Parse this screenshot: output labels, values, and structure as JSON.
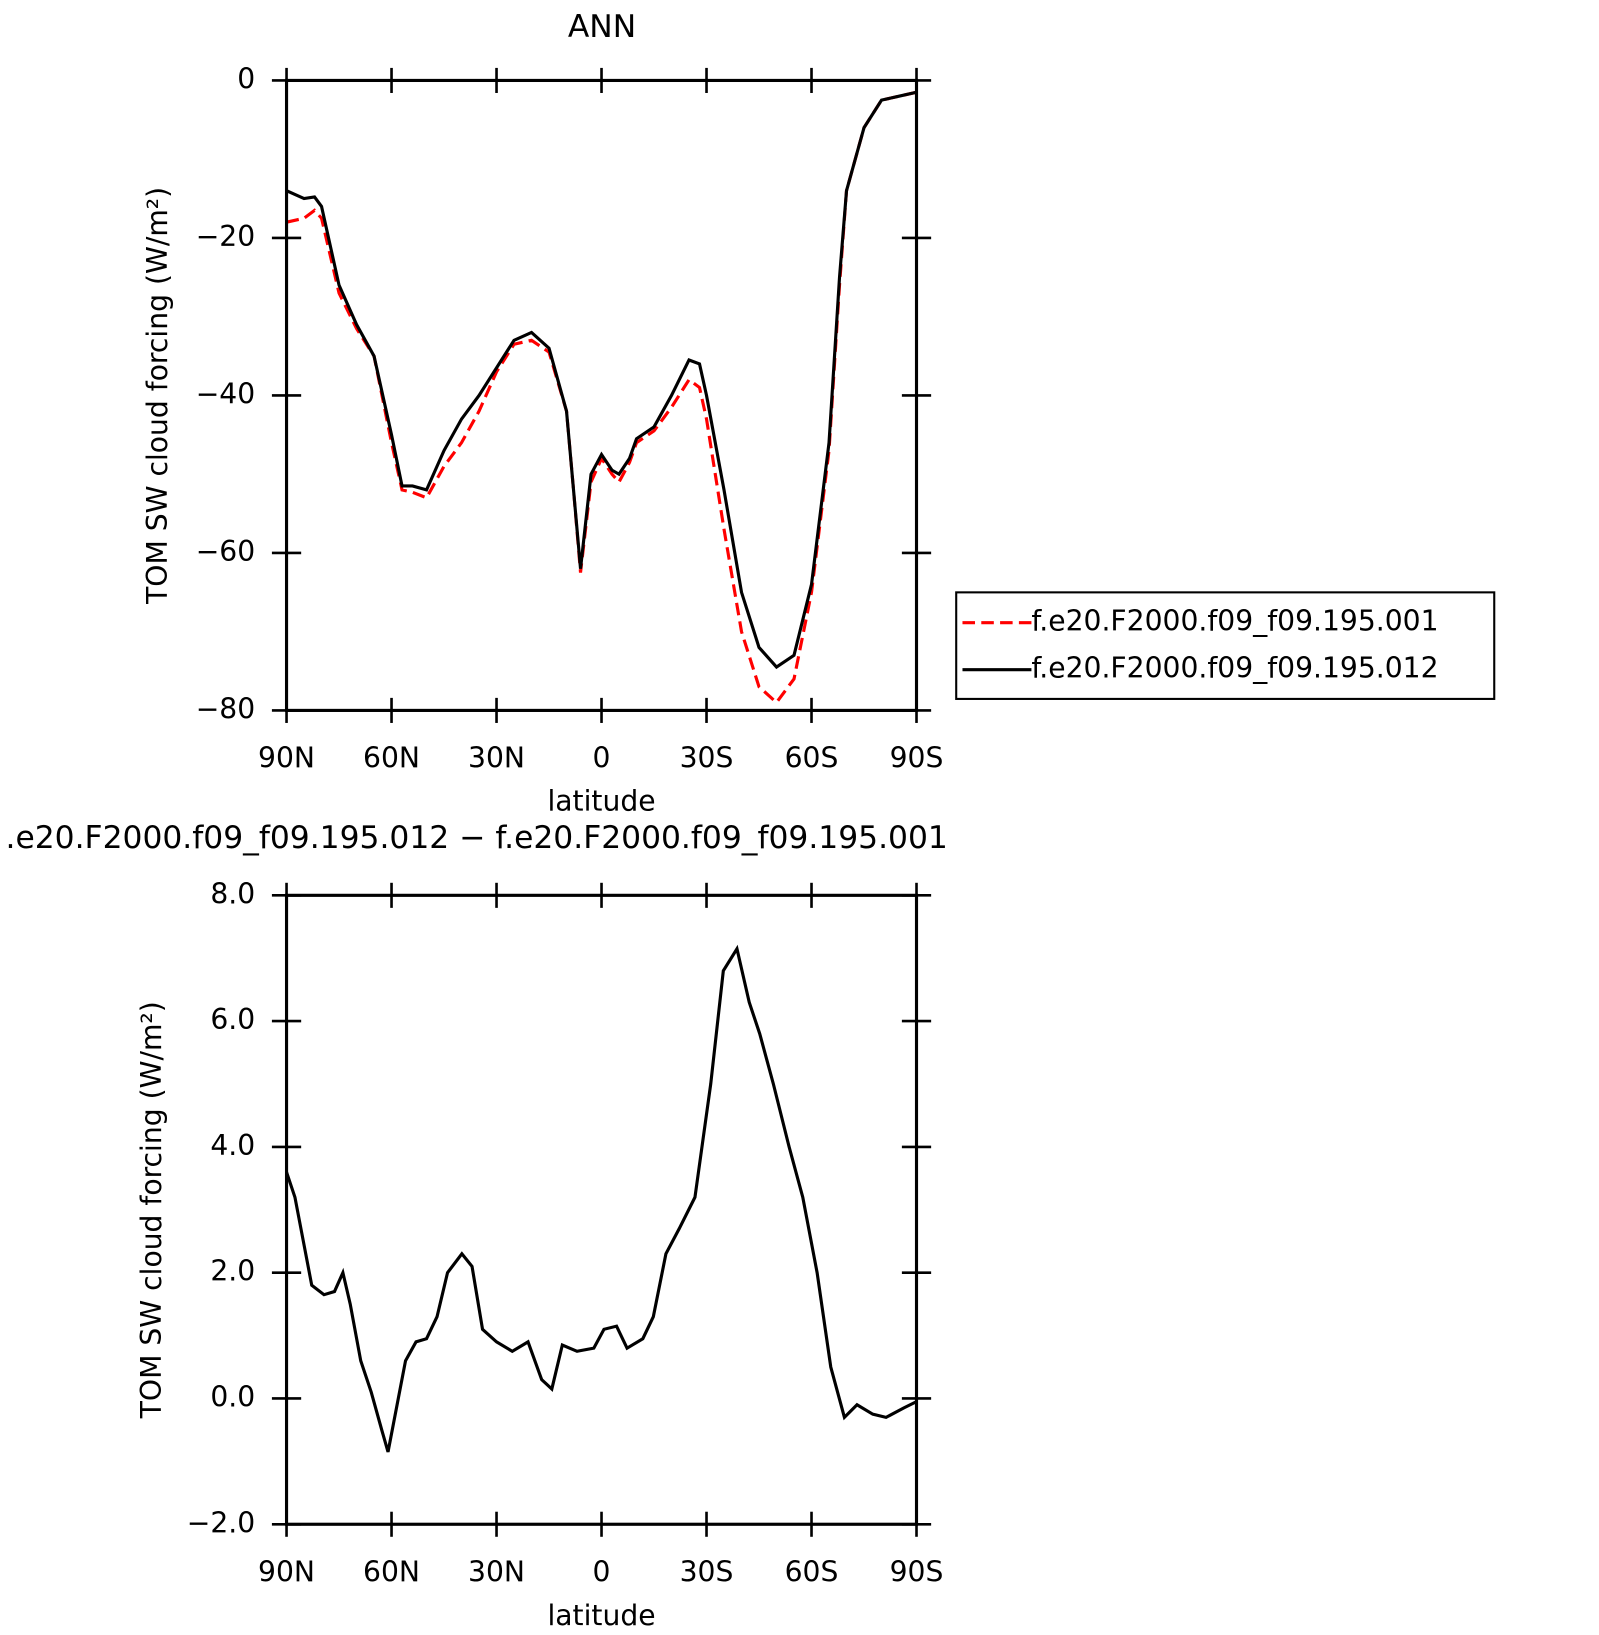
{
  "chart_data": [
    {
      "type": "line",
      "title": "ANN",
      "xlabel": "latitude",
      "ylabel": "TOM SW cloud forcing (W/m²)",
      "x": [
        90,
        85,
        82,
        80,
        75,
        70,
        65,
        60,
        57,
        54,
        50,
        45,
        40,
        35,
        30,
        25,
        20,
        15,
        10,
        8,
        6,
        3,
        0,
        -3,
        -5,
        -8,
        -10,
        -15,
        -20,
        -25,
        -28,
        -30,
        -35,
        -40,
        -45,
        -50,
        -55,
        -60,
        -65,
        -68,
        -70,
        -75,
        -80,
        -85,
        -90
      ],
      "series": [
        {
          "name": "f.e20.F2000.f09_f09.195.001",
          "color": "#ff0000",
          "linestyle": "dashed",
          "values": [
            -18,
            -17.5,
            -16.5,
            -17.5,
            -27,
            -31.5,
            -35,
            -46,
            -52,
            -52.3,
            -53,
            -49,
            -46,
            -42,
            -37,
            -33.5,
            -33,
            -34.5,
            -42,
            -52,
            -62.5,
            -51,
            -48,
            -50,
            -51,
            -48.5,
            -46,
            -44.5,
            -41.5,
            -38,
            -39,
            -43,
            -57,
            -70,
            -77,
            -79,
            -76,
            -65,
            -47,
            -26,
            -14,
            -6,
            -2.5,
            -2,
            -1.5
          ]
        },
        {
          "name": "f.e20.F2000.f09_f09.195.012",
          "color": "#000000",
          "linestyle": "solid",
          "values": [
            -14,
            -15,
            -14.8,
            -16,
            -26,
            -31,
            -35,
            -45,
            -51.5,
            -51.5,
            -52,
            -47,
            -43,
            -40,
            -36.5,
            -33,
            -32,
            -34,
            -42,
            -52,
            -62,
            -50,
            -47.5,
            -49.5,
            -50,
            -48,
            -45.5,
            -44,
            -40,
            -35.5,
            -36,
            -40,
            -52,
            -65,
            -72,
            -74.5,
            -73,
            -64,
            -46,
            -25,
            -14,
            -6,
            -2.5,
            -2,
            -1.5
          ]
        }
      ],
      "xlim": [
        90,
        -90
      ],
      "xticks": [
        {
          "value": 90,
          "label": "90N"
        },
        {
          "value": 60,
          "label": "60N"
        },
        {
          "value": 30,
          "label": "30N"
        },
        0,
        {
          "value": -30,
          "label": "30S"
        },
        {
          "value": -60,
          "label": "60S"
        },
        {
          "value": -90,
          "label": "90S"
        }
      ],
      "ylim": [
        -80,
        0
      ],
      "yticks": [
        {
          "value": -80,
          "label": "−80"
        },
        {
          "value": -60,
          "label": "−60"
        },
        {
          "value": -40,
          "label": "−40"
        },
        {
          "value": -20,
          "label": "−20"
        },
        0
      ],
      "legend": "right"
    },
    {
      "type": "line",
      "title": ".e20.F2000.f09_f09.195.012 − f.e20.F2000.f09_f09.195.001",
      "xlabel": "latitude",
      "ylabel": "TOM SW cloud forcing (W/m²)",
      "x": [
        90,
        87.6,
        85.2,
        82.8,
        79.3,
        76.3,
        73.9,
        71.8,
        68.8,
        65.8,
        62.8,
        61,
        56,
        53,
        50,
        47,
        44,
        39.9,
        37,
        34,
        30,
        25.5,
        21,
        17.1,
        14.2,
        11.2,
        7,
        2.2,
        -0.7,
        -4.3,
        -7.3,
        -11.8,
        -14.8,
        -18.4,
        -22.2,
        -26.7,
        -31.2,
        -34.8,
        -38.7,
        -42.2,
        -45.2,
        -49.1,
        -53.6,
        -57.5,
        -61.6,
        -65.5,
        -69.4,
        -73,
        -77.5,
        -81.3,
        -86.4,
        -90
      ],
      "series": [
        {
          "color": "#000000",
          "linestyle": "solid",
          "values": [
            3.6,
            3.2,
            2.5,
            1.8,
            1.65,
            1.7,
            2.0,
            1.5,
            0.6,
            0.1,
            -0.5,
            -0.85,
            0.6,
            0.9,
            0.95,
            1.3,
            2.0,
            2.3,
            2.1,
            1.1,
            0.9,
            0.75,
            0.9,
            0.3,
            0.15,
            0.85,
            0.75,
            0.8,
            1.1,
            1.15,
            0.8,
            0.95,
            1.3,
            2.3,
            2.7,
            3.2,
            5.0,
            6.8,
            7.15,
            6.3,
            5.8,
            5.0,
            4.0,
            3.2,
            2.0,
            0.5,
            -0.3,
            -0.1,
            -0.25,
            -0.3,
            -0.15,
            -0.05
          ]
        }
      ],
      "xlim": [
        90,
        -90
      ],
      "xticks": [
        {
          "value": 90,
          "label": "90N"
        },
        {
          "value": 60,
          "label": "60N"
        },
        {
          "value": 30,
          "label": "30N"
        },
        0,
        {
          "value": -30,
          "label": "30S"
        },
        {
          "value": -60,
          "label": "60S"
        },
        {
          "value": -90,
          "label": "90S"
        }
      ],
      "ylim": [
        -2,
        8
      ],
      "yticks": [
        {
          "value": -2,
          "label": "−2.0"
        },
        {
          "value": 0,
          "label": "0.0"
        },
        {
          "value": 2,
          "label": "2.0"
        },
        {
          "value": 4,
          "label": "4.0"
        },
        {
          "value": 6,
          "label": "6.0"
        },
        {
          "value": 8,
          "label": "8.0"
        }
      ]
    }
  ]
}
